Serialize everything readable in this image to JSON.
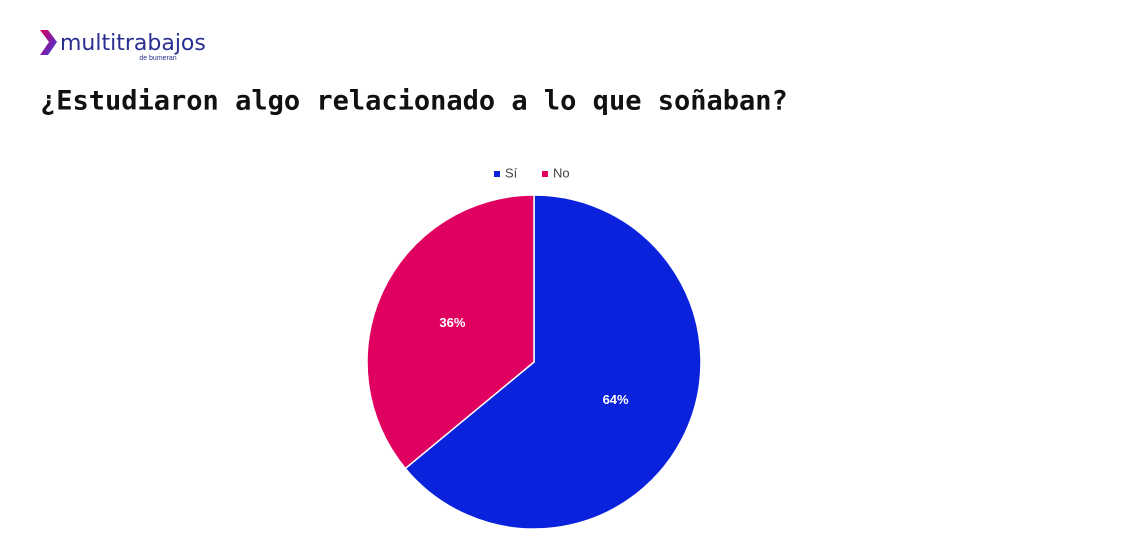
{
  "logo": {
    "name": "multitrabajos",
    "tagline": "de bumeran"
  },
  "chart_data": {
    "type": "pie",
    "title": "¿Estudiaron algo relacionado a lo que soñaban?",
    "categories": [
      "Sí",
      "No"
    ],
    "values": [
      64,
      36
    ],
    "value_labels": [
      "64%",
      "36%"
    ],
    "colors": [
      "#0a22dc",
      "#e0005f"
    ]
  }
}
